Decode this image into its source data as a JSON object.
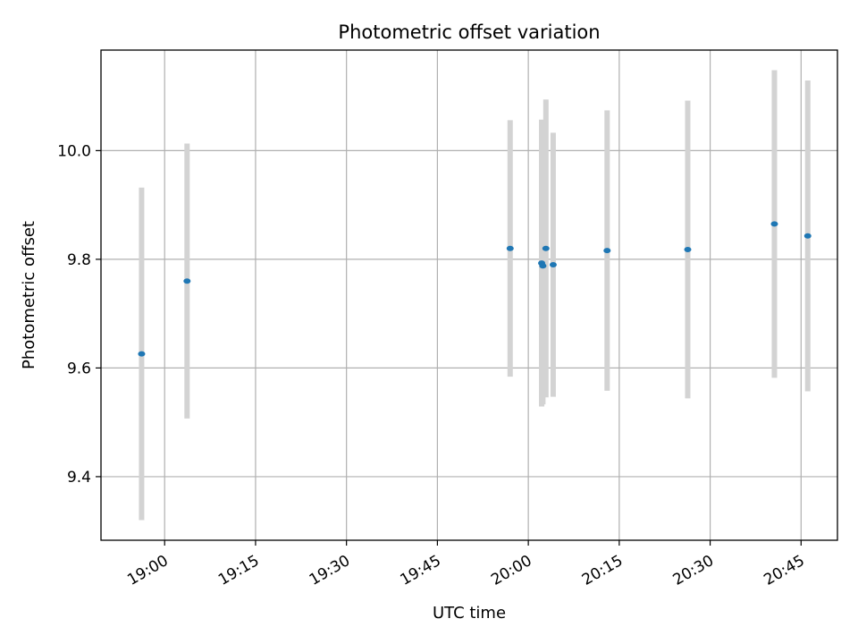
{
  "chart_data": {
    "type": "scatter",
    "title": "Photometric offset variation",
    "xlabel": "UTC time",
    "ylabel": "Photometric offset",
    "x_unit": "UTC (HH:MM)",
    "xlim": [
      "18:49.5",
      "20:51.0"
    ],
    "ylim": [
      9.283,
      10.185
    ],
    "x_ticks": [
      "19:00",
      "19:15",
      "19:30",
      "19:45",
      "20:00",
      "20:15",
      "20:30",
      "20:45"
    ],
    "y_ticks": [
      "9.4",
      "9.6",
      "9.8",
      "10.0"
    ],
    "grid": true,
    "point_color": "#1f77b4",
    "errorbar_color": "#d3d3d3",
    "series": [
      {
        "points": [
          {
            "x": "18:56.2",
            "y": 9.626,
            "ylow": 9.32,
            "yhigh": 9.932
          },
          {
            "x": "19:03.7",
            "y": 9.76,
            "ylow": 9.507,
            "yhigh": 10.013
          },
          {
            "x": "19:57.0",
            "y": 9.82,
            "ylow": 9.584,
            "yhigh": 10.056
          },
          {
            "x": "20:02.2",
            "y": 9.793,
            "ylow": 9.529,
            "yhigh": 10.057
          },
          {
            "x": "20:02.4",
            "y": 9.788,
            "ylow": 9.533,
            "yhigh": 10.043
          },
          {
            "x": "20:02.9",
            "y": 9.82,
            "ylow": 9.546,
            "yhigh": 10.094
          },
          {
            "x": "20:04.1",
            "y": 9.79,
            "ylow": 9.547,
            "yhigh": 10.033
          },
          {
            "x": "20:13.0",
            "y": 9.816,
            "ylow": 9.558,
            "yhigh": 10.074
          },
          {
            "x": "20:26.3",
            "y": 9.818,
            "ylow": 9.544,
            "yhigh": 10.092
          },
          {
            "x": "20:40.6",
            "y": 9.865,
            "ylow": 9.582,
            "yhigh": 10.148
          },
          {
            "x": "20:46.1",
            "y": 9.843,
            "ylow": 9.557,
            "yhigh": 10.129
          }
        ]
      }
    ]
  }
}
